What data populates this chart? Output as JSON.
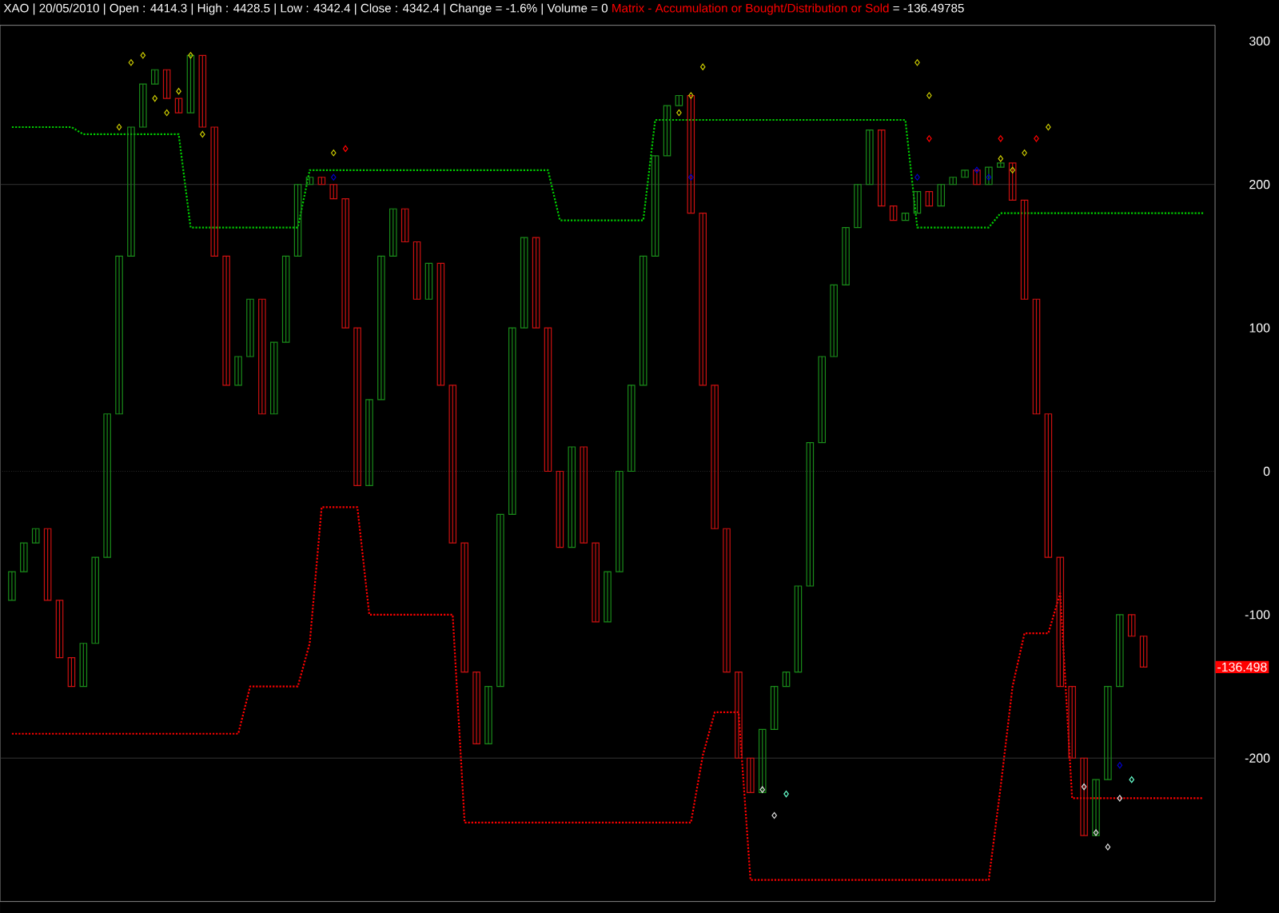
{
  "chart_data": {
    "type": "candlestick",
    "title": "XAO | 20/05/2010 | Open : 4414.3 | High : 4428.5 | Low : 4342.4 | Close : 4342.4 | Change = -1.6% | Volume = 0",
    "subtitle": "Matrix - Accumulation or Bought/Distribution or Sold",
    "annotations": [
      "= -136.49785",
      "-136.498"
    ],
    "categories": [
      null,
      null,
      null,
      null,
      null,
      null,
      null,
      null,
      null,
      null,
      null,
      null,
      null,
      null,
      null,
      null,
      null,
      null,
      null,
      null,
      null,
      null,
      null,
      null,
      null,
      null,
      null,
      null,
      null,
      null,
      null,
      null,
      null,
      null,
      null,
      null,
      null,
      null,
      null,
      null,
      null,
      null,
      null,
      null,
      null,
      null,
      null,
      null,
      null,
      null,
      null,
      null,
      null,
      null,
      null,
      null,
      null,
      null,
      null,
      null,
      null,
      null,
      null,
      null,
      null,
      null,
      null,
      null,
      null,
      null,
      null,
      null,
      null,
      null,
      null,
      null,
      null,
      null,
      null,
      null,
      null,
      null,
      null,
      null,
      null,
      null,
      null,
      null,
      null,
      null,
      null,
      null,
      null,
      null,
      null,
      null,
      null,
      null,
      null,
      null,
      null
    ],
    "ohlc": [
      [
        -90,
        -70,
        -90,
        -70
      ],
      [
        -70,
        -50,
        -70,
        -50
      ],
      [
        -50,
        -40,
        -50,
        -40
      ],
      [
        -40,
        -40,
        -90,
        -90
      ],
      [
        -90,
        -90,
        -130,
        -130
      ],
      [
        -130,
        -130,
        -150,
        -150
      ],
      [
        -150,
        -120,
        -150,
        -120
      ],
      [
        -120,
        -60,
        -120,
        -60
      ],
      [
        -60,
        40,
        -60,
        40
      ],
      [
        40,
        150,
        40,
        150
      ],
      [
        150,
        240,
        150,
        240
      ],
      [
        240,
        270,
        240,
        270
      ],
      [
        270,
        280,
        270,
        280
      ],
      [
        280,
        280,
        260,
        260
      ],
      [
        260,
        260,
        250,
        250
      ],
      [
        250,
        290,
        250,
        290
      ],
      [
        290,
        290,
        240,
        240
      ],
      [
        240,
        240,
        150,
        150
      ],
      [
        150,
        150,
        60,
        60
      ],
      [
        60,
        80,
        60,
        80
      ],
      [
        80,
        120,
        80,
        120
      ],
      [
        120,
        120,
        40,
        40
      ],
      [
        40,
        90,
        40,
        90
      ],
      [
        90,
        150,
        90,
        150
      ],
      [
        150,
        200,
        150,
        200
      ],
      [
        200,
        205,
        200,
        205
      ],
      [
        205,
        205,
        200,
        200
      ],
      [
        200,
        200,
        190,
        190
      ],
      [
        190,
        190,
        100,
        100
      ],
      [
        100,
        100,
        -10,
        -10
      ],
      [
        -10,
        50,
        -10,
        50
      ],
      [
        50,
        150,
        50,
        150
      ],
      [
        150,
        183,
        150,
        183
      ],
      [
        183,
        183,
        160,
        160
      ],
      [
        160,
        160,
        120,
        120
      ],
      [
        120,
        145,
        120,
        145
      ],
      [
        145,
        145,
        60,
        60
      ],
      [
        60,
        60,
        -50,
        -50
      ],
      [
        -50,
        -50,
        -140,
        -140
      ],
      [
        -140,
        -140,
        -190,
        -190
      ],
      [
        -190,
        -150,
        -190,
        -150
      ],
      [
        -150,
        -30,
        -150,
        -30
      ],
      [
        -30,
        100,
        -30,
        100
      ],
      [
        100,
        163,
        100,
        163
      ],
      [
        163,
        163,
        100,
        100
      ],
      [
        100,
        100,
        0,
        0
      ],
      [
        0,
        0,
        -53,
        -53
      ],
      [
        -53,
        17,
        -53,
        17
      ],
      [
        17,
        17,
        -50,
        -50
      ],
      [
        -50,
        -50,
        -105,
        -105
      ],
      [
        -105,
        -70,
        -105,
        -70
      ],
      [
        -70,
        0,
        -70,
        0
      ],
      [
        0,
        60,
        0,
        60
      ],
      [
        60,
        150,
        60,
        150
      ],
      [
        150,
        220,
        150,
        220
      ],
      [
        220,
        255,
        220,
        255
      ],
      [
        255,
        262,
        255,
        262
      ],
      [
        262,
        262,
        180,
        180
      ],
      [
        180,
        180,
        60,
        60
      ],
      [
        60,
        60,
        -40,
        -40
      ],
      [
        -40,
        -40,
        -140,
        -140
      ],
      [
        -140,
        -140,
        -200,
        -200
      ],
      [
        -200,
        -200,
        -224,
        -224
      ],
      [
        -224,
        -180,
        -224,
        -180
      ],
      [
        -180,
        -150,
        -180,
        -150
      ],
      [
        -150,
        -140,
        -150,
        -140
      ],
      [
        -140,
        -80,
        -140,
        -80
      ],
      [
        -80,
        20,
        -80,
        20
      ],
      [
        20,
        80,
        20,
        80
      ],
      [
        80,
        130,
        80,
        130
      ],
      [
        130,
        170,
        130,
        170
      ],
      [
        170,
        200,
        170,
        200
      ],
      [
        200,
        238,
        200,
        238
      ],
      [
        238,
        238,
        185,
        185
      ],
      [
        185,
        185,
        175,
        175
      ],
      [
        175,
        180,
        175,
        180
      ],
      [
        180,
        195,
        180,
        195
      ],
      [
        195,
        195,
        185,
        185
      ],
      [
        185,
        200,
        185,
        200
      ],
      [
        200,
        205,
        200,
        205
      ],
      [
        205,
        210,
        205,
        210
      ],
      [
        210,
        210,
        200,
        200
      ],
      [
        200,
        212,
        200,
        212
      ],
      [
        212,
        215,
        212,
        215
      ],
      [
        215,
        215,
        189,
        189
      ],
      [
        189,
        189,
        120,
        120
      ],
      [
        120,
        120,
        40,
        40
      ],
      [
        40,
        40,
        -60,
        -60
      ],
      [
        -60,
        -60,
        -150,
        -150
      ],
      [
        -150,
        -150,
        -200,
        -200
      ],
      [
        -200,
        -200,
        -254,
        -254
      ],
      [
        -254,
        -215,
        -254,
        -215
      ],
      [
        -215,
        -150,
        -215,
        -150
      ],
      [
        -150,
        -100,
        -150,
        -100
      ],
      [
        -100,
        -100,
        -115,
        -115
      ],
      [
        -115,
        -115,
        -136.5,
        -136.5
      ],
      null,
      null,
      null,
      null,
      null
    ],
    "colors": [
      "#1a8c1a",
      "#1a8c1a",
      "#1a8c1a",
      "#cc1111",
      "#cc1111",
      "#cc1111",
      "#1a8c1a",
      "#1a8c1a",
      "#1a8c1a",
      "#1a8c1a",
      "#1a8c1a",
      "#1a8c1a",
      "#1a8c1a",
      "#cc1111",
      "#cc1111",
      "#1a8c1a",
      "#cc1111",
      "#cc1111",
      "#cc1111",
      "#1a8c1a",
      "#1a8c1a",
      "#cc1111",
      "#1a8c1a",
      "#1a8c1a",
      "#1a8c1a",
      "#1a8c1a",
      "#cc1111",
      "#cc1111",
      "#cc1111",
      "#cc1111",
      "#1a8c1a",
      "#1a8c1a",
      "#1a8c1a",
      "#cc1111",
      "#cc1111",
      "#1a8c1a",
      "#cc1111",
      "#cc1111",
      "#cc1111",
      "#cc1111",
      "#1a8c1a",
      "#1a8c1a",
      "#1a8c1a",
      "#1a8c1a",
      "#cc1111",
      "#cc1111",
      "#cc1111",
      "#1a8c1a",
      "#cc1111",
      "#cc1111",
      "#1a8c1a",
      "#1a8c1a",
      "#1a8c1a",
      "#1a8c1a",
      "#1a8c1a",
      "#1a8c1a",
      "#1a8c1a",
      "#cc1111",
      "#cc1111",
      "#cc1111",
      "#cc1111",
      "#cc1111",
      "#cc1111",
      "#1a8c1a",
      "#1a8c1a",
      "#1a8c1a",
      "#1a8c1a",
      "#1a8c1a",
      "#1a8c1a",
      "#1a8c1a",
      "#1a8c1a",
      "#1a8c1a",
      "#1a8c1a",
      "#cc1111",
      "#cc1111",
      "#1a8c1a",
      "#1a8c1a",
      "#cc1111",
      "#1a8c1a",
      "#1a8c1a",
      "#1a8c1a",
      "#cc1111",
      "#1a8c1a",
      "#1a8c1a",
      "#cc1111",
      "#cc1111",
      "#cc1111",
      "#cc1111",
      "#cc1111",
      "#cc1111",
      "#cc1111",
      "#1a8c1a",
      "#1a8c1a",
      "#1a8c1a",
      "#cc1111",
      "#cc1111",
      null,
      null,
      null,
      null,
      null
    ],
    "series": [
      {
        "type": "line",
        "color": "#00cc00",
        "line_style": "dotted",
        "values": [
          240,
          240,
          240,
          240,
          240,
          240,
          235,
          235,
          235,
          235,
          235,
          235,
          235,
          235,
          235,
          170,
          170,
          170,
          170,
          170,
          170,
          170,
          170,
          170,
          170,
          210,
          210,
          210,
          210,
          210,
          210,
          210,
          210,
          210,
          210,
          210,
          210,
          210,
          210,
          210,
          210,
          210,
          210,
          210,
          210,
          210,
          175,
          175,
          175,
          175,
          175,
          175,
          175,
          175,
          245,
          245,
          245,
          245,
          245,
          245,
          245,
          245,
          245,
          245,
          245,
          245,
          245,
          245,
          245,
          245,
          245,
          245,
          245,
          245,
          245,
          245,
          170,
          170,
          170,
          170,
          170,
          170,
          170,
          180,
          180,
          180,
          180,
          180,
          180,
          180,
          180,
          180,
          180,
          180,
          180,
          180,
          180,
          180,
          180,
          180,
          180
        ]
      },
      {
        "type": "line",
        "color": "#ff0000",
        "line_style": "dotted",
        "values": [
          -183,
          -183,
          -183,
          -183,
          -183,
          -183,
          -183,
          -183,
          -183,
          -183,
          -183,
          -183,
          -183,
          -183,
          -183,
          -183,
          -183,
          -183,
          -183,
          -183,
          -150,
          -150,
          -150,
          -150,
          -150,
          -120,
          -25,
          -25,
          -25,
          -25,
          -100,
          -100,
          -100,
          -100,
          -100,
          -100,
          -100,
          -100,
          -245,
          -245,
          -245,
          -245,
          -245,
          -245,
          -245,
          -245,
          -245,
          -245,
          -245,
          -245,
          -245,
          -245,
          -245,
          -245,
          -245,
          -245,
          -245,
          -245,
          -198,
          -168,
          -168,
          -168,
          -285,
          -285,
          -285,
          -285,
          -285,
          -285,
          -285,
          -285,
          -285,
          -285,
          -285,
          -285,
          -285,
          -285,
          -285,
          -285,
          -285,
          -285,
          -285,
          -285,
          -285,
          -220,
          -150,
          -113,
          -113,
          -113,
          -85,
          -228,
          -228,
          -228,
          -228,
          -228,
          -228,
          -228,
          -228,
          -228,
          -228,
          -228,
          -228
        ]
      },
      {
        "type": "scatter",
        "marker": "diamond",
        "color": "#cccc00",
        "values": [
          null,
          null,
          null,
          null,
          null,
          null,
          null,
          null,
          null,
          240,
          285,
          290,
          260,
          250,
          265,
          290,
          235,
          null,
          null,
          null,
          null,
          null,
          null,
          null,
          null,
          null,
          null,
          222,
          null,
          null,
          null,
          null,
          null,
          null,
          null,
          null,
          null,
          null,
          null,
          null,
          null,
          null,
          null,
          null,
          null,
          null,
          null,
          null,
          null,
          null,
          null,
          null,
          null,
          null,
          null,
          null,
          250,
          262,
          282,
          null,
          null,
          null,
          null,
          null,
          null,
          null,
          null,
          null,
          null,
          null,
          null,
          null,
          null,
          null,
          null,
          null,
          285,
          262,
          null,
          null,
          null,
          null,
          null,
          218,
          210,
          222,
          null,
          240,
          null,
          null,
          null,
          null,
          null,
          null,
          null,
          null,
          null,
          null,
          null,
          null,
          null
        ]
      },
      {
        "type": "scatter",
        "marker": "diamond",
        "color": "#e0e0e0",
        "values": [
          null,
          null,
          null,
          null,
          null,
          null,
          null,
          null,
          null,
          null,
          null,
          null,
          null,
          null,
          null,
          null,
          null,
          null,
          null,
          null,
          null,
          null,
          null,
          null,
          null,
          null,
          null,
          null,
          null,
          null,
          null,
          null,
          null,
          null,
          null,
          null,
          null,
          null,
          null,
          null,
          null,
          null,
          null,
          null,
          null,
          null,
          null,
          null,
          null,
          null,
          null,
          null,
          null,
          null,
          null,
          null,
          null,
          null,
          null,
          null,
          null,
          null,
          null,
          -222,
          -240,
          null,
          null,
          null,
          null,
          null,
          null,
          null,
          null,
          null,
          null,
          null,
          null,
          null,
          null,
          null,
          null,
          null,
          null,
          null,
          null,
          null,
          null,
          null,
          null,
          null,
          -220,
          -252,
          -262,
          -228,
          null,
          null,
          null,
          null,
          null,
          null,
          null
        ]
      },
      {
        "type": "scatter",
        "marker": "diamond",
        "color": "#ff0000",
        "values": [
          null,
          null,
          null,
          null,
          null,
          null,
          null,
          null,
          null,
          null,
          null,
          null,
          null,
          null,
          null,
          null,
          null,
          null,
          null,
          null,
          null,
          null,
          null,
          null,
          null,
          null,
          null,
          null,
          225,
          null,
          null,
          null,
          null,
          null,
          null,
          null,
          null,
          null,
          null,
          null,
          null,
          null,
          null,
          null,
          null,
          null,
          null,
          null,
          null,
          null,
          null,
          null,
          null,
          null,
          null,
          null,
          null,
          null,
          null,
          null,
          null,
          null,
          null,
          null,
          null,
          null,
          null,
          null,
          null,
          null,
          null,
          null,
          null,
          null,
          null,
          null,
          null,
          232,
          null,
          null,
          null,
          null,
          null,
          232,
          null,
          null,
          232,
          null,
          null,
          null,
          null,
          null,
          null,
          null,
          null,
          null,
          null,
          null,
          null,
          null,
          null
        ]
      },
      {
        "type": "scatter",
        "marker": "diamond",
        "color": "#0000cc",
        "values": [
          null,
          null,
          null,
          null,
          null,
          null,
          null,
          null,
          null,
          null,
          null,
          null,
          null,
          null,
          null,
          null,
          null,
          null,
          null,
          null,
          null,
          null,
          null,
          null,
          null,
          null,
          null,
          205,
          null,
          null,
          null,
          null,
          null,
          null,
          null,
          null,
          null,
          null,
          null,
          null,
          null,
          null,
          null,
          null,
          null,
          null,
          null,
          null,
          null,
          null,
          null,
          null,
          null,
          null,
          null,
          null,
          null,
          205,
          null,
          null,
          null,
          null,
          null,
          null,
          null,
          null,
          null,
          null,
          null,
          null,
          null,
          null,
          null,
          null,
          null,
          null,
          205,
          null,
          null,
          null,
          null,
          210,
          205,
          null,
          null,
          null,
          null,
          null,
          null,
          null,
          null,
          null,
          null,
          -205,
          null,
          null,
          null,
          null,
          null,
          null,
          null
        ]
      },
      {
        "type": "scatter",
        "marker": "diamond",
        "color": "#66ffcc",
        "values": [
          null,
          null,
          null,
          null,
          null,
          null,
          null,
          null,
          null,
          null,
          null,
          null,
          null,
          null,
          null,
          null,
          null,
          null,
          null,
          null,
          null,
          null,
          null,
          null,
          null,
          null,
          null,
          null,
          null,
          null,
          null,
          null,
          null,
          null,
          null,
          null,
          null,
          null,
          null,
          null,
          null,
          null,
          null,
          null,
          null,
          null,
          null,
          null,
          null,
          null,
          null,
          null,
          null,
          null,
          null,
          null,
          null,
          null,
          null,
          null,
          null,
          null,
          null,
          null,
          null,
          -225,
          null,
          null,
          null,
          null,
          null,
          null,
          null,
          null,
          null,
          null,
          null,
          null,
          null,
          null,
          null,
          null,
          null,
          null,
          null,
          null,
          null,
          null,
          null,
          null,
          null,
          null,
          null,
          null,
          -215,
          null,
          null,
          null,
          null,
          null,
          null
        ]
      }
    ],
    "ylim": [
      -300,
      311
    ],
    "yticks": [
      -200,
      -100,
      0,
      100,
      200,
      300
    ],
    "ref_lines": [
      {
        "axis": "y",
        "value": 200,
        "color": "#404040",
        "line_style": "solid"
      },
      {
        "axis": "y",
        "value": 0,
        "color": "#404040",
        "line_style": "dotted"
      },
      {
        "axis": "y",
        "value": -200,
        "color": "#404040",
        "line_style": "solid"
      }
    ]
  }
}
